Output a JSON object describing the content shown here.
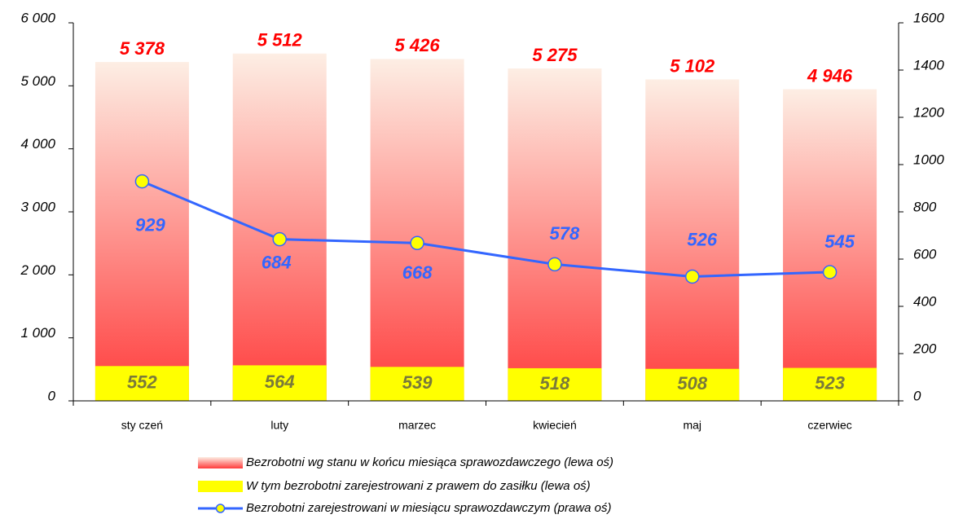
{
  "chart_data": {
    "type": "bar",
    "categories": [
      "sty czeń",
      "luty",
      "marzec",
      "kwiecień",
      "maj",
      "czerwiec"
    ],
    "series": [
      {
        "name": "Bezrobotni wg stanu w końcu miesiąca sprawozdawczego (lewa oś)",
        "type": "bar",
        "color": "#ff3b3b",
        "values": [
          5378,
          5512,
          5426,
          5275,
          5102,
          4946
        ],
        "value_labels": [
          "5 378",
          "5 512",
          "5 426",
          "5 275",
          "5 102",
          "4 946"
        ]
      },
      {
        "name": "W tym bezrobotni zarejestrowani z prawem do zasiłku (lewa oś)",
        "type": "bar",
        "color": "#ffff00",
        "values": [
          552,
          564,
          539,
          518,
          508,
          523
        ]
      },
      {
        "name": "Bezrobotni zarejestrowani w miesiącu sprawozdawczym (prawa oś)",
        "type": "line",
        "axis": "y2",
        "color": "#3366ff",
        "values": [
          929,
          684,
          668,
          578,
          526,
          545
        ]
      }
    ],
    "ylim": [
      0,
      6000
    ],
    "yticks": [
      0,
      {
        "value": 1000,
        "label": "1 000"
      },
      {
        "value": 2000,
        "label": "2 000"
      },
      {
        "value": 3000,
        "label": "3 000"
      },
      {
        "value": 4000,
        "label": "4 000"
      },
      {
        "value": 5000,
        "label": "5 000"
      },
      {
        "value": 6000,
        "label": "6 000"
      }
    ],
    "y2lim": [
      0,
      1600
    ],
    "y2ticks": [
      0,
      200,
      400,
      600,
      800,
      1000,
      1200,
      1400,
      1600
    ]
  }
}
